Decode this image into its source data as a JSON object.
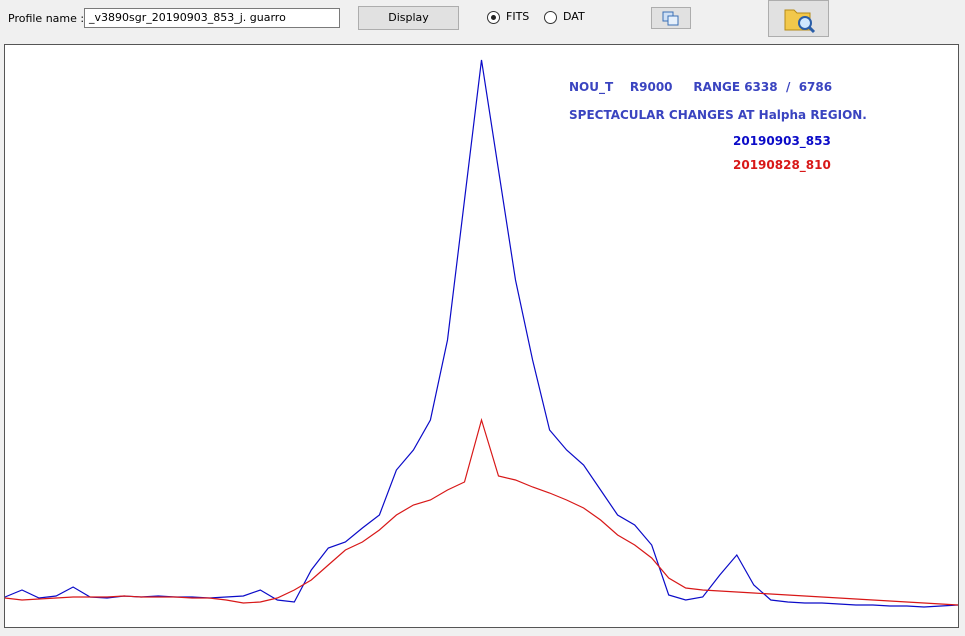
{
  "toolbar": {
    "profile_label": "Profile name :",
    "profile_value": "_v3890sgr_20190903_853_j. guarro",
    "display_button": "Display",
    "options": [
      "FITS",
      "DAT"
    ],
    "selected_option": 0
  },
  "chart_data": {
    "type": "line",
    "annotations": [
      "NOU_T    R9000     RANGE 6338  /  6786",
      "SPECTACULAR CHANGES AT Halpha REGION."
    ],
    "annotation_color": "#3a44c0",
    "x": [
      6338,
      6346,
      6354,
      6362,
      6370,
      6378,
      6386,
      6394,
      6402,
      6410,
      6418,
      6426,
      6434,
      6442,
      6450,
      6458,
      6466,
      6474,
      6482,
      6490,
      6498,
      6506,
      6514,
      6522,
      6530,
      6538,
      6546,
      6554,
      6562,
      6570,
      6578,
      6586,
      6594,
      6602,
      6610,
      6618,
      6626,
      6634,
      6642,
      6650,
      6658,
      6666,
      6674,
      6682,
      6690,
      6698,
      6706,
      6714,
      6722,
      6730,
      6738,
      6746,
      6754,
      6762,
      6770,
      6778,
      6786
    ],
    "xlim": [
      6338,
      6786
    ],
    "ylim": [
      0,
      582
    ],
    "series": [
      {
        "name": "20190903_853",
        "color": "#0b0bc8",
        "values": [
          30,
          37,
          29,
          31,
          40,
          30,
          29,
          31,
          30,
          31,
          30,
          30,
          29,
          30,
          31,
          37,
          27,
          25,
          57,
          79,
          85,
          99,
          112,
          157,
          177,
          207,
          287,
          427,
          567,
          457,
          347,
          267,
          197,
          177,
          162,
          137,
          112,
          102,
          82,
          32,
          27,
          30,
          52,
          72,
          42,
          27,
          25,
          24,
          24,
          23,
          22,
          22,
          21,
          21,
          20,
          21,
          22
        ]
      },
      {
        "name": "20190828_810",
        "color": "#d81818",
        "values": [
          29,
          27,
          28,
          29,
          30,
          30,
          30,
          31,
          30,
          30,
          30,
          29,
          29,
          27,
          24,
          25,
          29,
          37,
          47,
          62,
          77,
          85,
          97,
          112,
          122,
          127,
          137,
          145,
          207,
          151,
          147,
          140,
          134,
          127,
          119,
          107,
          92,
          82,
          69,
          49,
          39,
          37,
          36,
          35,
          34,
          33,
          32,
          31,
          30,
          29,
          28,
          27,
          26,
          25,
          24,
          23,
          22
        ]
      }
    ]
  }
}
